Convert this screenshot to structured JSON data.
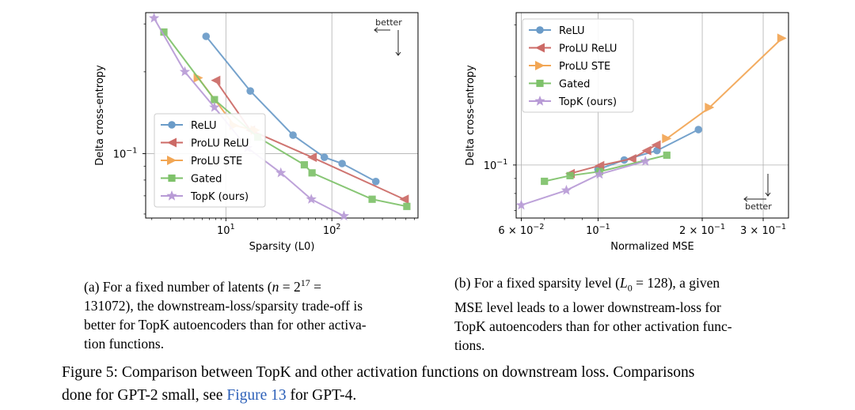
{
  "chart_data": [
    {
      "type": "line",
      "id": "a",
      "xscale": "log",
      "yscale": "log",
      "xlabel": "Sparsity (L0)",
      "ylabel": "Delta cross-entropy",
      "xlim": [
        1.75,
        650
      ],
      "ylim": [
        0.058,
        0.33
      ],
      "xticks": [
        {
          "value": 10,
          "base": "10",
          "exp": "1"
        },
        {
          "value": 100,
          "base": "10",
          "exp": "2"
        }
      ],
      "yticks": [
        {
          "value": 0.1,
          "base": "10",
          "exp": "−1"
        }
      ],
      "legend_position": "lower-left",
      "better": {
        "text": "better",
        "direction": "down-left",
        "position": "top-right"
      },
      "series": [
        {
          "name": "ReLU",
          "color": "#6a9bc8",
          "marker": "circle",
          "x": [
            6.5,
            17,
            43,
            85,
            125,
            260
          ],
          "y": [
            0.27,
            0.17,
            0.117,
            0.097,
            0.092,
            0.079
          ]
        },
        {
          "name": "ProLU ReLU",
          "color": "#cc6a66",
          "marker": "triangle-left",
          "x": [
            8,
            17,
            65,
            480
          ],
          "y": [
            0.186,
            0.122,
            0.097,
            0.068
          ]
        },
        {
          "name": "ProLU STE",
          "color": "#f2a654",
          "marker": "triangle-right",
          "x": [
            5.5,
            12,
            19
          ],
          "y": [
            0.19,
            0.127,
            0.122
          ]
        },
        {
          "name": "Gated",
          "color": "#7ec26a",
          "marker": "square",
          "x": [
            2.6,
            7.8,
            20,
            55,
            65,
            240,
            510
          ],
          "y": [
            0.28,
            0.158,
            0.115,
            0.091,
            0.085,
            0.068,
            0.064
          ]
        },
        {
          "name": "TopK (ours)",
          "color": "#b89bd6",
          "marker": "star",
          "x": [
            2.1,
            4.1,
            7.8,
            16,
            33,
            64,
            130
          ],
          "y": [
            0.315,
            0.2,
            0.148,
            0.105,
            0.085,
            0.068,
            0.059
          ]
        }
      ]
    },
    {
      "type": "line",
      "id": "b",
      "xscale": "log",
      "yscale": "log",
      "xlabel": "Normalized MSE",
      "ylabel": "Delta cross-entropy",
      "xlim": [
        0.058,
        0.355
      ],
      "ylim": [
        0.066,
        0.33
      ],
      "xticks": [
        {
          "value": 0.06,
          "base": "6 × 10",
          "exp": "−2"
        },
        {
          "value": 0.1,
          "base": "10",
          "exp": "−1"
        },
        {
          "value": 0.2,
          "base": "2 × 10",
          "exp": "−1"
        },
        {
          "value": 0.3,
          "base": "3 × 10",
          "exp": "−1"
        }
      ],
      "yticks": [
        {
          "value": 0.1,
          "base": "10",
          "exp": "−1"
        }
      ],
      "legend_position": "upper-left",
      "better": {
        "text": "better",
        "direction": "down-left",
        "position": "bottom-right"
      },
      "series": [
        {
          "name": "ReLU",
          "color": "#6a9bc8",
          "marker": "circle",
          "x": [
            0.1,
            0.119,
            0.148,
            0.195
          ],
          "y": [
            0.0965,
            0.104,
            0.112,
            0.132
          ]
        },
        {
          "name": "ProLU ReLU",
          "color": "#cc6a66",
          "marker": "triangle-left",
          "x": [
            0.083,
            0.101,
            0.125,
            0.138,
            0.147
          ],
          "y": [
            0.0935,
            0.0995,
            0.105,
            0.112,
            0.117
          ]
        },
        {
          "name": "ProLU STE",
          "color": "#f2a654",
          "marker": "triangle-right",
          "x": [
            0.158,
            0.21,
            0.34
          ],
          "y": [
            0.123,
            0.157,
            0.27
          ]
        },
        {
          "name": "Gated",
          "color": "#7ec26a",
          "marker": "square",
          "x": [
            0.07,
            0.083,
            0.101,
            0.158
          ],
          "y": [
            0.088,
            0.092,
            0.095,
            0.108
          ]
        },
        {
          "name": "TopK (ours)",
          "color": "#b89bd6",
          "marker": "star",
          "x": [
            0.06,
            0.081,
            0.101,
            0.137
          ],
          "y": [
            0.073,
            0.082,
            0.093,
            0.103
          ]
        }
      ]
    }
  ],
  "captions": {
    "a": {
      "prefix": "(a) For a fixed number of latents (",
      "math_var": "n",
      "eq": " = 2",
      "exp": "17",
      "rest1": " =",
      "line2": "131072), the downstream-loss/sparsity trade-off is",
      "line3": "better for TopK autoencoders than for other activa-",
      "line4": "tion functions."
    },
    "b": {
      "prefix": "(b) For a fixed sparsity level (",
      "math_var": "L",
      "sub": "0",
      "rest1": " = 128), a given",
      "line2": "MSE level leads to a lower downstream-loss for",
      "line3": "TopK autoencoders than for other activation func-",
      "line4": "tions."
    }
  },
  "figure_caption": {
    "part1": "Figure 5: Comparison between TopK and other activation functions on downstream loss. Comparisons",
    "part2a": "done for GPT-2 small, see ",
    "link": "Figure 13",
    "part2b": " for GPT-4."
  }
}
